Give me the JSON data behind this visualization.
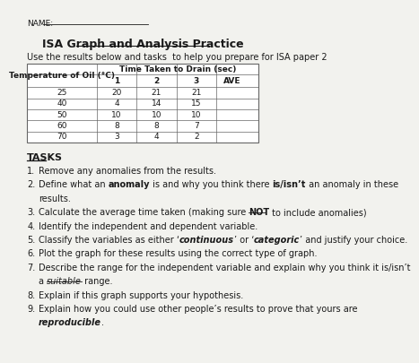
{
  "title": "ISA Graph and Analysis Practice",
  "subtitle": "Use the results below and tasks  to help you prepare for ISA paper 2",
  "name_label": "NAME:",
  "table_header_merged": "Time Taken to Drain (sec)",
  "table_header_row2": [
    "Temperature of Oil (°C)",
    "1",
    "2",
    "3",
    "AVE"
  ],
  "table_data": [
    [
      "25",
      "20",
      "21",
      "21",
      ""
    ],
    [
      "40",
      "4",
      "14",
      "15",
      ""
    ],
    [
      "50",
      "10",
      "10",
      "10",
      ""
    ],
    [
      "60",
      "8",
      "8",
      "7",
      ""
    ],
    [
      "70",
      "3",
      "4",
      "2",
      ""
    ]
  ],
  "tasks_title": "TASKS",
  "bg_color": "#f2f2ee",
  "text_color": "#1a1a1a",
  "table_border_color": "#666666",
  "font_size_title": 9,
  "font_size_body": 7,
  "font_size_name": 6.5
}
